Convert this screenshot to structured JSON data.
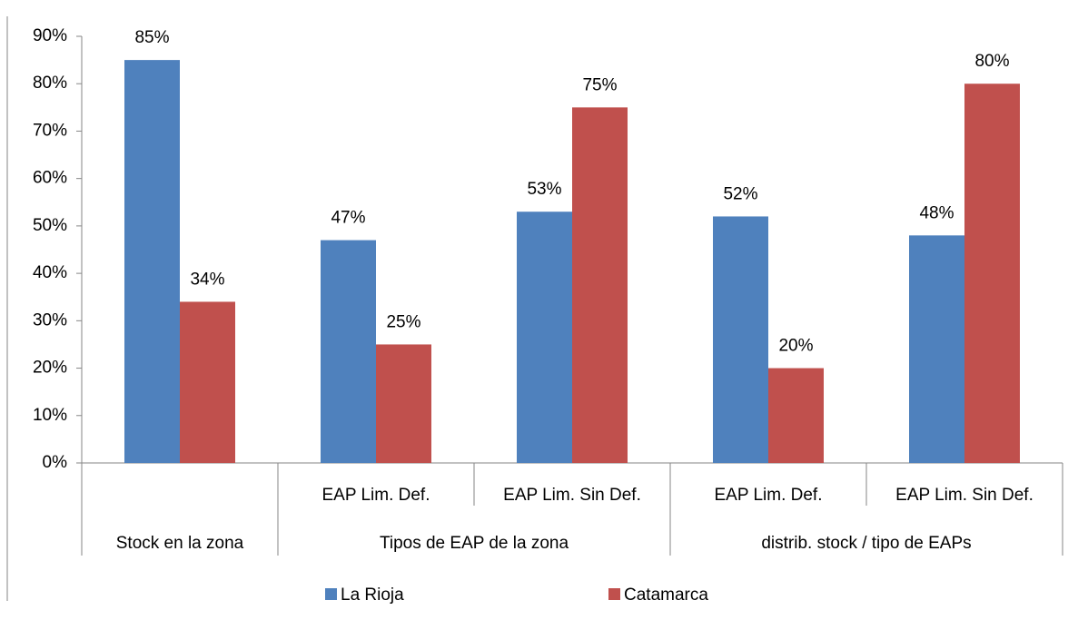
{
  "chart_data": {
    "type": "bar",
    "groups": [
      {
        "name": "Stock en la zona",
        "categories": [
          null
        ]
      },
      {
        "name": "Tipos de  EAP  de la zona",
        "categories": [
          "EAP Lim. Def.",
          "EAP Lim. Sin Def."
        ]
      },
      {
        "name": "distrib. stock / tipo de EAPs",
        "categories": [
          "EAP Lim. Def.",
          "EAP Lim. Sin Def."
        ]
      }
    ],
    "series": [
      {
        "name": "La Rioja",
        "color": "#4f81bd",
        "values": [
          85,
          47,
          53,
          52,
          48
        ],
        "value_labels": [
          "85%",
          "47%",
          "53%",
          "52%",
          "48%"
        ]
      },
      {
        "name": "Catamarca",
        "color": "#c0504d",
        "values": [
          34,
          25,
          75,
          20,
          80
        ],
        "value_labels": [
          "34%",
          "25%",
          "75%",
          "20%",
          "80%"
        ]
      }
    ],
    "ylim": [
      0,
      90
    ],
    "yticks": [
      {
        "value": 0,
        "label": "0%"
      },
      {
        "value": 10,
        "label": "10%"
      },
      {
        "value": 20,
        "label": "20%"
      },
      {
        "value": 30,
        "label": "30%"
      },
      {
        "value": 40,
        "label": "40%"
      },
      {
        "value": 50,
        "label": "50%"
      },
      {
        "value": 60,
        "label": "60%"
      },
      {
        "value": 70,
        "label": "70%"
      },
      {
        "value": 80,
        "label": "80%"
      },
      {
        "value": 90,
        "label": "90%"
      }
    ],
    "legend": "bottom"
  }
}
